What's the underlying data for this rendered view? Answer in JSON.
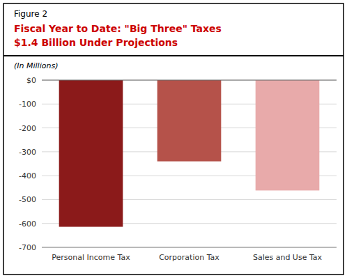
{
  "chart_data": {
    "type": "bar",
    "annotations": [
      "Figure 2"
    ],
    "title": "Fiscal Year to Date: \"Big Three\" Taxes",
    "subtitle": "$1.4 Billion Under Projections",
    "ylabel": "(In Millions)",
    "categories": [
      "Personal Income Tax",
      "Corporation Tax",
      "Sales and Use Tax"
    ],
    "values": [
      -614,
      -340,
      -462
    ],
    "colors": [
      "#8B1A1A",
      "#B5524A",
      "#E8AAAA"
    ],
    "ylim": [
      -700,
      0
    ],
    "yticks": [
      {
        "value": 0,
        "label": "$0"
      },
      -100,
      -200,
      -300,
      -400,
      -500,
      -600,
      -700
    ],
    "grid": true
  }
}
